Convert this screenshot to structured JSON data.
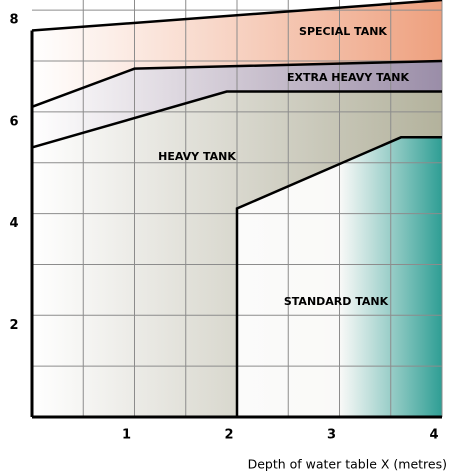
{
  "chart_data": {
    "type": "area",
    "xlabel": "Depth of water table X (metres)",
    "xlim": [
      0,
      4
    ],
    "ylim": [
      0,
      8.2
    ],
    "xticks": [
      1,
      2,
      3,
      4
    ],
    "yticks": [
      2,
      4,
      6,
      8
    ],
    "grid": true,
    "series": [
      {
        "name": "SPECIAL TANK",
        "color": "#eea07e",
        "x": [
          0,
          4
        ],
        "values": [
          7.6,
          8.2
        ]
      },
      {
        "name": "EXTRA HEAVY TANK",
        "color": "#9a8da8",
        "x": [
          0,
          1,
          4
        ],
        "values": [
          6.1,
          6.85,
          7.0
        ]
      },
      {
        "name": "HEAVY TANK",
        "color": "#b3b29c",
        "x": [
          0,
          1.9,
          4
        ],
        "values": [
          5.3,
          6.4,
          6.4
        ]
      },
      {
        "name": "STANDARD TANK",
        "color": "#2e9e94",
        "x": [
          2,
          2,
          3.6,
          4
        ],
        "values": [
          0,
          4.1,
          5.5,
          5.5
        ]
      }
    ]
  }
}
